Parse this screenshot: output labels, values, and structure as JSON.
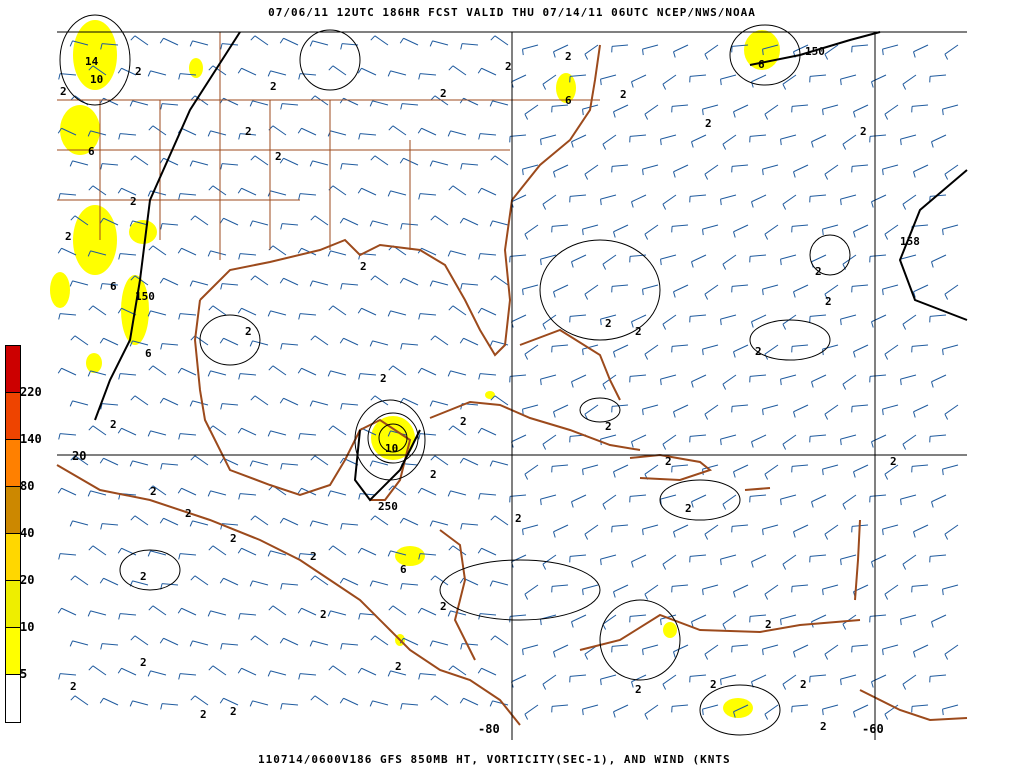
{
  "header": {
    "title": "07/06/11 12UTC   186HR   FCST VALID THU 07/14/11 06UTC   NCEP/NWS/NOAA"
  },
  "footer": {
    "caption": "110714/0600V186 GFS 850MB HT, VORTICITY(SEC-1), AND WIND (KNTS"
  },
  "colorbar": {
    "levels": [
      "220",
      "140",
      "80",
      "40",
      "20",
      "10",
      "5"
    ],
    "colors": [
      "#cc0000",
      "#ee4400",
      "#ff8000",
      "#cc8800",
      "#ffd700",
      "#eeee00",
      "#ffff00",
      "#ffffff"
    ]
  },
  "map": {
    "grid_labels": {
      "lon_80": "-80",
      "lon_60": "-60",
      "lat_20": "20"
    },
    "contour_labels": {
      "vort_low": "2",
      "vort_mid": "6",
      "vort_high": "10",
      "vort_max": "14",
      "height_150": "150",
      "height_158": "158",
      "height_250": "250"
    },
    "colors": {
      "coastline": "#9c4a1c",
      "wind_barbs": "#1f5a9e",
      "contours": "#000000",
      "vorticity_fill": "#ffff00",
      "grid": "#000000"
    }
  }
}
